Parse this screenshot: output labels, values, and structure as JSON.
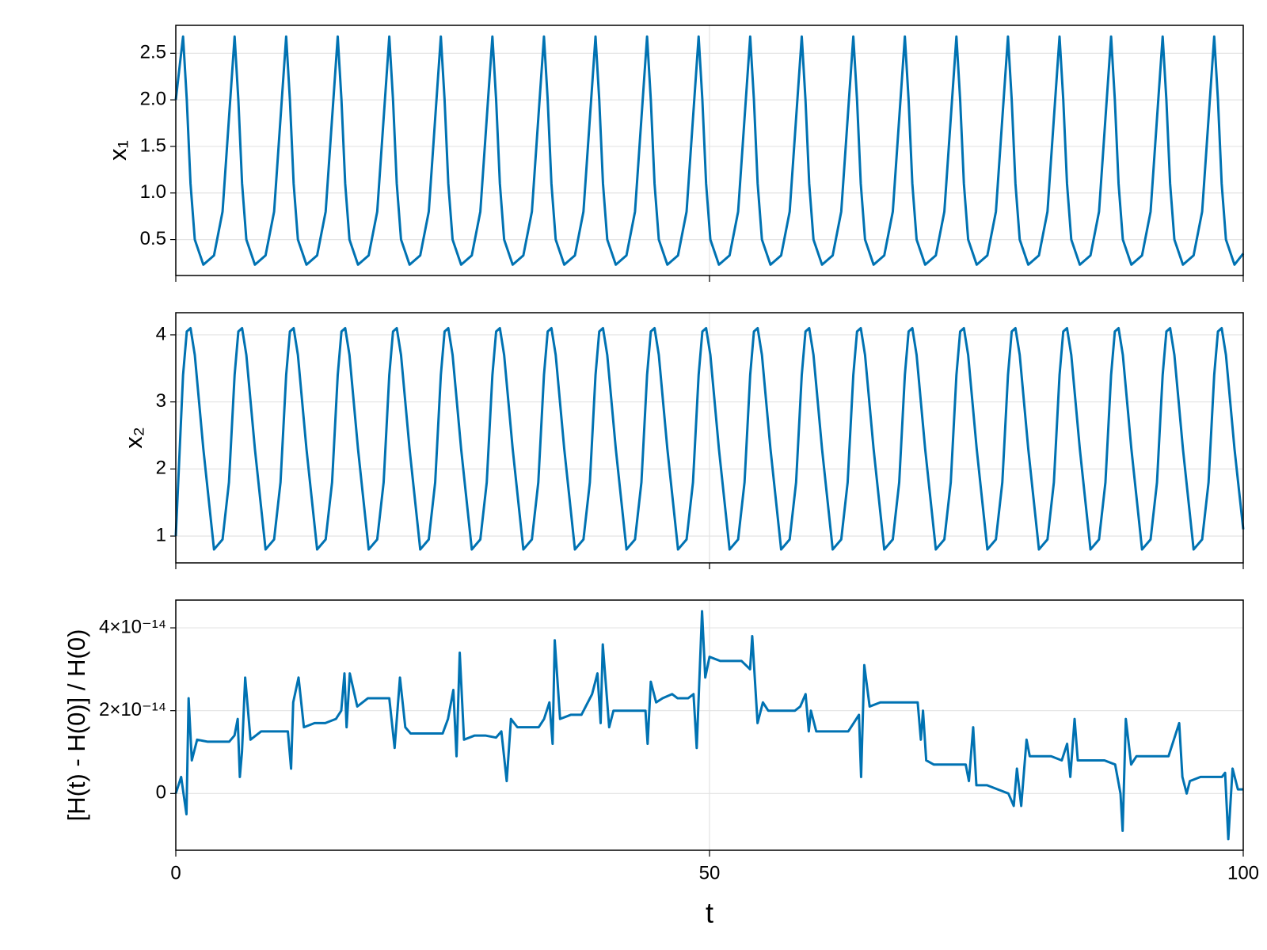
{
  "chart_data": [
    {
      "type": "line",
      "ylabel": "x₁",
      "x": [
        0,
        0.68,
        1.03,
        1.38,
        1.78,
        2.58,
        3.58,
        4.38,
        4.98,
        5.51,
        5.86,
        6.21,
        6.61,
        7.41,
        8.41,
        9.21,
        9.81,
        10.34,
        10.69,
        11.04,
        11.44,
        12.24,
        13.24,
        14.04,
        14.64,
        15.17,
        15.52,
        15.87,
        16.27,
        17.07,
        18.07,
        18.87,
        19.47,
        20,
        20.35,
        20.7,
        21.1,
        21.9,
        22.9,
        23.7,
        24.3,
        24.83,
        25.18,
        25.53,
        25.93,
        26.73,
        27.73,
        28.53,
        29.13,
        29.66,
        30.01,
        30.36,
        30.76,
        31.56,
        32.56,
        33.36,
        33.96,
        34.49,
        34.84,
        35.19,
        35.59,
        36.39,
        37.39,
        38.19,
        38.79,
        39.32,
        39.67,
        40.02,
        40.42,
        41.22,
        42.22,
        43.02,
        43.62,
        44.15,
        44.5,
        44.85,
        45.25,
        46.05,
        47.05,
        47.85,
        48.45,
        48.98,
        49.33,
        49.68,
        50.08,
        50.88,
        51.88,
        52.68,
        53.28,
        53.81,
        54.16,
        54.51,
        54.91,
        55.71,
        56.71,
        57.51,
        58.11,
        58.64,
        58.99,
        59.34,
        59.74,
        60.54,
        61.54,
        62.34,
        62.94,
        63.47,
        63.82,
        64.17,
        64.57,
        65.37,
        66.37,
        67.17,
        67.77,
        68.3,
        68.65,
        69,
        69.4,
        70.2,
        71.2,
        72,
        72.6,
        73.13,
        73.48,
        73.83,
        74.23,
        75.03,
        76.03,
        76.83,
        77.43,
        77.96,
        78.31,
        78.66,
        79.06,
        79.86,
        80.86,
        81.66,
        82.26,
        82.79,
        83.14,
        83.49,
        83.89,
        84.69,
        85.69,
        86.49,
        87.09,
        87.62,
        87.97,
        88.32,
        88.72,
        89.52,
        90.52,
        91.32,
        91.92,
        92.45,
        92.8,
        93.15,
        93.55,
        94.35,
        95.35,
        96.15,
        96.75,
        97.28,
        97.63,
        97.98,
        98.38,
        99.18,
        100
      ],
      "series": [
        {
          "color": "#0072b2",
          "values": [
            2.0,
            2.68,
            2.0,
            1.1,
            0.5,
            0.23,
            0.33,
            0.8,
            1.8,
            2.68,
            2.0,
            1.1,
            0.5,
            0.23,
            0.33,
            0.8,
            1.8,
            2.68,
            2.0,
            1.1,
            0.5,
            0.23,
            0.33,
            0.8,
            1.8,
            2.68,
            2.0,
            1.1,
            0.5,
            0.23,
            0.33,
            0.8,
            1.8,
            2.68,
            2.0,
            1.1,
            0.5,
            0.23,
            0.33,
            0.8,
            1.8,
            2.68,
            2.0,
            1.1,
            0.5,
            0.23,
            0.33,
            0.8,
            1.8,
            2.68,
            2.0,
            1.1,
            0.5,
            0.23,
            0.33,
            0.8,
            1.8,
            2.68,
            2.0,
            1.1,
            0.5,
            0.23,
            0.33,
            0.8,
            1.8,
            2.68,
            2.0,
            1.1,
            0.5,
            0.23,
            0.33,
            0.8,
            1.8,
            2.68,
            2.0,
            1.1,
            0.5,
            0.23,
            0.33,
            0.8,
            1.8,
            2.68,
            2.0,
            1.1,
            0.5,
            0.23,
            0.33,
            0.8,
            1.8,
            2.68,
            2.0,
            1.1,
            0.5,
            0.23,
            0.33,
            0.8,
            1.8,
            2.68,
            2.0,
            1.1,
            0.5,
            0.23,
            0.33,
            0.8,
            1.8,
            2.68,
            2.0,
            1.1,
            0.5,
            0.23,
            0.33,
            0.8,
            1.8,
            2.68,
            2.0,
            1.1,
            0.5,
            0.23,
            0.33,
            0.8,
            1.8,
            2.68,
            2.0,
            1.1,
            0.5,
            0.23,
            0.33,
            0.8,
            1.8,
            2.68,
            2.0,
            1.1,
            0.5,
            0.23,
            0.33,
            0.8,
            1.8,
            2.68,
            2.0,
            1.1,
            0.5,
            0.23,
            0.33,
            0.8,
            1.8,
            2.68,
            2.0,
            1.1,
            0.5,
            0.23,
            0.33,
            0.8,
            1.8,
            2.68,
            2.0,
            1.1,
            0.5,
            0.23,
            0.33,
            0.8,
            1.8,
            2.68,
            2.0,
            1.1,
            0.5,
            0.23,
            0.35
          ]
        }
      ],
      "xlim": [
        0,
        100
      ],
      "xticks": [
        0,
        50,
        100
      ],
      "ylim": [
        0.114,
        2.8
      ],
      "yticks": [
        0.5,
        {
          "value": 1,
          "label": "1.0"
        },
        1.5,
        {
          "value": 2,
          "label": "2.0"
        },
        2.5
      ],
      "grid": true
    },
    {
      "type": "line",
      "ylabel": "x₂",
      "x": [
        0,
        0.68,
        1.03,
        1.38,
        1.78,
        2.58,
        3.58,
        4.38,
        4.98,
        5.51,
        5.86,
        6.21,
        6.61,
        7.41,
        8.41,
        9.21,
        9.81,
        10.34,
        10.69,
        11.04,
        11.44,
        12.24,
        13.24,
        14.04,
        14.64,
        15.17,
        15.52,
        15.87,
        16.27,
        17.07,
        18.07,
        18.87,
        19.47,
        20,
        20.35,
        20.7,
        21.1,
        21.9,
        22.9,
        23.7,
        24.3,
        24.83,
        25.18,
        25.53,
        25.93,
        26.73,
        27.73,
        28.53,
        29.13,
        29.66,
        30.01,
        30.36,
        30.76,
        31.56,
        32.56,
        33.36,
        33.96,
        34.49,
        34.84,
        35.19,
        35.59,
        36.39,
        37.39,
        38.19,
        38.79,
        39.32,
        39.67,
        40.02,
        40.42,
        41.22,
        42.22,
        43.02,
        43.62,
        44.15,
        44.5,
        44.85,
        45.25,
        46.05,
        47.05,
        47.85,
        48.45,
        48.98,
        49.33,
        49.68,
        50.08,
        50.88,
        51.88,
        52.68,
        53.28,
        53.81,
        54.16,
        54.51,
        54.91,
        55.71,
        56.71,
        57.51,
        58.11,
        58.64,
        58.99,
        59.34,
        59.74,
        60.54,
        61.54,
        62.34,
        62.94,
        63.47,
        63.82,
        64.17,
        64.57,
        65.37,
        66.37,
        67.17,
        67.77,
        68.3,
        68.65,
        69,
        69.4,
        70.2,
        71.2,
        72,
        72.6,
        73.13,
        73.48,
        73.83,
        74.23,
        75.03,
        76.03,
        76.83,
        77.43,
        77.96,
        78.31,
        78.66,
        79.06,
        79.86,
        80.86,
        81.66,
        82.26,
        82.79,
        83.14,
        83.49,
        83.89,
        84.69,
        85.69,
        86.49,
        87.09,
        87.62,
        87.97,
        88.32,
        88.72,
        89.52,
        90.52,
        91.32,
        91.92,
        92.45,
        92.8,
        93.15,
        93.55,
        94.35,
        95.35,
        96.15,
        96.75,
        97.28,
        97.63,
        97.98,
        98.38,
        99.18,
        100
      ],
      "series": [
        {
          "color": "#0072b2",
          "values": [
            1.0,
            3.4,
            4.05,
            4.1,
            3.7,
            2.3,
            0.8,
            0.95,
            1.8,
            3.4,
            4.05,
            4.1,
            3.7,
            2.3,
            0.8,
            0.95,
            1.8,
            3.4,
            4.05,
            4.1,
            3.7,
            2.3,
            0.8,
            0.95,
            1.8,
            3.4,
            4.05,
            4.1,
            3.7,
            2.3,
            0.8,
            0.95,
            1.8,
            3.4,
            4.05,
            4.1,
            3.7,
            2.3,
            0.8,
            0.95,
            1.8,
            3.4,
            4.05,
            4.1,
            3.7,
            2.3,
            0.8,
            0.95,
            1.8,
            3.4,
            4.05,
            4.1,
            3.7,
            2.3,
            0.8,
            0.95,
            1.8,
            3.4,
            4.05,
            4.1,
            3.7,
            2.3,
            0.8,
            0.95,
            1.8,
            3.4,
            4.05,
            4.1,
            3.7,
            2.3,
            0.8,
            0.95,
            1.8,
            3.4,
            4.05,
            4.1,
            3.7,
            2.3,
            0.8,
            0.95,
            1.8,
            3.4,
            4.05,
            4.1,
            3.7,
            2.3,
            0.8,
            0.95,
            1.8,
            3.4,
            4.05,
            4.1,
            3.7,
            2.3,
            0.8,
            0.95,
            1.8,
            3.4,
            4.05,
            4.1,
            3.7,
            2.3,
            0.8,
            0.95,
            1.8,
            3.4,
            4.05,
            4.1,
            3.7,
            2.3,
            0.8,
            0.95,
            1.8,
            3.4,
            4.05,
            4.1,
            3.7,
            2.3,
            0.8,
            0.95,
            1.8,
            3.4,
            4.05,
            4.1,
            3.7,
            2.3,
            0.8,
            0.95,
            1.8,
            3.4,
            4.05,
            4.1,
            3.7,
            2.3,
            0.8,
            0.95,
            1.8,
            3.4,
            4.05,
            4.1,
            3.7,
            2.3,
            0.8,
            0.95,
            1.8,
            3.4,
            4.05,
            4.1,
            3.7,
            2.3,
            0.8,
            0.95,
            1.8,
            3.4,
            4.05,
            4.1,
            3.7,
            2.3,
            0.8,
            0.95,
            1.8,
            3.4,
            4.05,
            4.1,
            3.7,
            2.3,
            1.1
          ]
        }
      ],
      "xlim": [
        0,
        100
      ],
      "xticks": [
        0,
        50,
        100
      ],
      "ylim": [
        0.6,
        4.33
      ],
      "yticks": [
        1,
        2,
        3,
        4
      ],
      "grid": true
    },
    {
      "type": "line",
      "ylabel": "[H(t) - H(0)] / H(0)",
      "xlabel": "t",
      "x": [
        0,
        0.5,
        1,
        1.2,
        1.5,
        2,
        3,
        4,
        5,
        5.5,
        5.8,
        6,
        6.2,
        6.5,
        7,
        8,
        9,
        10,
        10.5,
        10.8,
        11,
        11.5,
        12,
        13,
        14,
        15,
        15.5,
        15.8,
        16,
        16.3,
        17,
        18,
        19,
        20,
        20.5,
        21,
        21.5,
        22,
        23,
        24,
        25,
        25.5,
        26,
        26.3,
        26.6,
        27,
        28,
        29,
        30,
        30.5,
        31,
        31.4,
        32,
        33,
        34,
        34.5,
        35,
        35.3,
        35.5,
        36,
        37,
        38,
        39,
        39.5,
        39.8,
        40,
        40.6,
        41,
        42,
        43,
        44,
        44.2,
        44.5,
        45,
        45.6,
        46.5,
        47,
        48,
        48.5,
        48.8,
        49.3,
        49.6,
        50,
        51,
        52,
        53,
        53.8,
        54,
        54.5,
        55,
        55.5,
        56,
        57,
        58,
        58.5,
        59,
        59.3,
        59.5,
        60,
        61,
        62,
        63,
        63.5,
        64,
        64.2,
        64.5,
        65,
        66,
        67,
        68,
        69,
        69.5,
        69.8,
        70,
        70.3,
        71,
        72,
        73,
        74,
        74.3,
        74.7,
        75,
        76,
        77,
        78,
        78.5,
        78.8,
        79.2,
        79.7,
        80,
        81,
        82,
        83,
        83.5,
        83.8,
        84.2,
        84.5,
        85,
        86,
        87,
        88,
        88.5,
        88.7,
        89,
        89.5,
        90,
        91,
        92,
        93,
        93.5,
        94,
        94.3,
        94.7,
        95,
        96,
        97,
        98,
        98.3,
        98.6,
        99,
        99.5,
        100
      ],
      "series": [
        {
          "color": "#0072b2",
          "values": [
            0,
            4e-15,
            -5e-15,
            2.3e-14,
            8e-15,
            1.3e-14,
            1.25e-14,
            1.25e-14,
            1.25e-14,
            1.4e-14,
            1.8e-14,
            4e-15,
            1e-14,
            2.8e-14,
            1.3e-14,
            1.5e-14,
            1.5e-14,
            1.5e-14,
            1.5e-14,
            6e-15,
            2.2e-14,
            2.8e-14,
            1.6e-14,
            1.7e-14,
            1.7e-14,
            1.8e-14,
            2e-14,
            2.9e-14,
            1.6e-14,
            2.9e-14,
            2.1e-14,
            2.3e-14,
            2.3e-14,
            2.3e-14,
            1.1e-14,
            2.8e-14,
            1.6e-14,
            1.45e-14,
            1.45e-14,
            1.45e-14,
            1.45e-14,
            1.8e-14,
            2.5e-14,
            9e-15,
            3.4e-14,
            1.3e-14,
            1.4e-14,
            1.4e-14,
            1.35e-14,
            1.5e-14,
            3e-15,
            1.8e-14,
            1.6e-14,
            1.6e-14,
            1.6e-14,
            1.8e-14,
            2.2e-14,
            1.2e-14,
            3.7e-14,
            1.8e-14,
            1.9e-14,
            1.9e-14,
            2.4e-14,
            2.9e-14,
            1.7e-14,
            3.6e-14,
            1.6e-14,
            2e-14,
            2e-14,
            2e-14,
            2e-14,
            1.2e-14,
            2.7e-14,
            2.2e-14,
            2.3e-14,
            2.4e-14,
            2.3e-14,
            2.3e-14,
            2.4e-14,
            1.1e-14,
            4.4e-14,
            2.8e-14,
            3.3e-14,
            3.2e-14,
            3.2e-14,
            3.2e-14,
            3e-14,
            3.8e-14,
            1.7e-14,
            2.2e-14,
            2e-14,
            2e-14,
            2e-14,
            2e-14,
            2.1e-14,
            2.4e-14,
            1.5e-14,
            2e-14,
            1.5e-14,
            1.5e-14,
            1.5e-14,
            1.5e-14,
            1.7e-14,
            1.9e-14,
            4e-15,
            3.1e-14,
            2.1e-14,
            2.2e-14,
            2.2e-14,
            2.2e-14,
            2.2e-14,
            2.2e-14,
            1.3e-14,
            2e-14,
            8e-15,
            7e-15,
            7e-15,
            7e-15,
            7e-15,
            3e-15,
            1.6e-14,
            2e-15,
            2e-15,
            1e-15,
            0,
            -3e-15,
            6e-15,
            -3e-15,
            1.3e-14,
            9e-15,
            9e-15,
            9e-15,
            8e-15,
            1.2e-14,
            4e-15,
            1.8e-14,
            8e-15,
            8e-15,
            8e-15,
            8e-15,
            7e-15,
            0,
            -9e-15,
            1.8e-14,
            7e-15,
            9e-15,
            9e-15,
            9e-15,
            9e-15,
            1.3e-14,
            1.7e-14,
            4e-15,
            0,
            3e-15,
            4e-15,
            4e-15,
            4e-15,
            5e-15,
            -1.1e-14,
            6e-15,
            1e-15,
            1e-15
          ]
        }
      ],
      "xlim": [
        0,
        100
      ],
      "xticks": [
        0,
        50,
        100
      ],
      "ylim": [
        -1.37e-14,
        4.67e-14
      ],
      "yticks": [
        0,
        {
          "value": 2e-14,
          "label": "2×10⁻¹⁴"
        },
        {
          "value": 4e-14,
          "label": "4×10⁻¹⁴"
        }
      ],
      "grid": true
    }
  ]
}
